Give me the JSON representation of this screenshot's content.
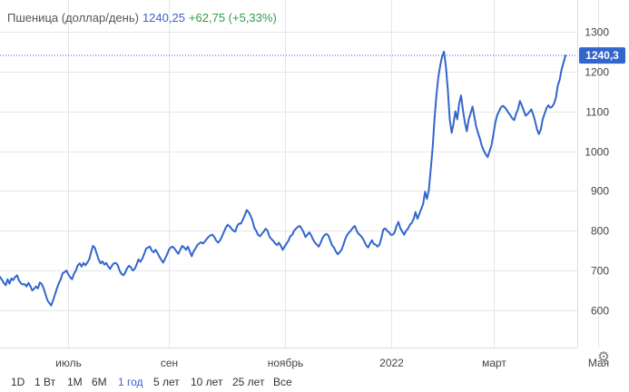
{
  "header": {
    "name": "Пшеница (доллар/день)",
    "price": "1240,25",
    "change": "+62,75 (+5,33%)"
  },
  "last_label": "1240,3",
  "colors": {
    "line": "#3366cc",
    "grid": "#e6e6e6",
    "positive": "#2e9e4a",
    "price_tag_bg": "#3366cc"
  },
  "ranges": [
    {
      "label": "1D",
      "active": false
    },
    {
      "label": "1 Вт",
      "active": false
    },
    {
      "label": "1M",
      "active": false
    },
    {
      "label": "6M",
      "active": false
    },
    {
      "label": "1 год",
      "active": true
    },
    {
      "label": "5 лет",
      "active": false
    },
    {
      "label": "10 лет",
      "active": false
    },
    {
      "label": "25 лет",
      "active": false
    },
    {
      "label": "Все",
      "active": false
    }
  ],
  "settings_icon": "gear-icon",
  "chart_data": {
    "type": "line",
    "ylim": [
      520,
      1310
    ],
    "y_ticks": [
      600,
      700,
      800,
      900,
      1000,
      1100,
      1200,
      1300
    ],
    "y_tick_labels": [
      "600",
      "700",
      "800",
      "900",
      "1000",
      "1100",
      "1200",
      "1300"
    ],
    "x_tick_labels": [
      "июль",
      "сен",
      "ноябрь",
      "2022",
      "март",
      "Мая"
    ],
    "x_tick_index": [
      36,
      89,
      150,
      206,
      260,
      315
    ],
    "grid": true,
    "reference_line": 1240.3,
    "series": [
      {
        "values": [
          684,
          677,
          669,
          663,
          678,
          667,
          680,
          676,
          684,
          688,
          675,
          668,
          665,
          666,
          660,
          669,
          661,
          650,
          654,
          660,
          655,
          670,
          666,
          655,
          640,
          625,
          618,
          612,
          625,
          640,
          655,
          668,
          678,
          693,
          696,
          700,
          690,
          683,
          678,
          692,
          700,
          713,
          718,
          710,
          719,
          713,
          720,
          728,
          745,
          762,
          757,
          742,
          728,
          718,
          723,
          715,
          719,
          710,
          704,
          712,
          718,
          719,
          714,
          700,
          692,
          688,
          695,
          706,
          712,
          708,
          700,
          704,
          715,
          728,
          722,
          730,
          742,
          755,
          758,
          760,
          750,
          746,
          752,
          744,
          735,
          727,
          720,
          730,
          740,
          752,
          758,
          760,
          755,
          748,
          742,
          752,
          762,
          758,
          752,
          760,
          748,
          736,
          748,
          755,
          764,
          768,
          771,
          768,
          773,
          780,
          785,
          789,
          790,
          784,
          775,
          770,
          776,
          786,
          797,
          808,
          815,
          811,
          805,
          800,
          798,
          812,
          818,
          818,
          828,
          839,
          852,
          847,
          838,
          826,
          808,
          800,
          790,
          786,
          792,
          798,
          805,
          800,
          785,
          779,
          775,
          768,
          764,
          770,
          762,
          752,
          760,
          768,
          775,
          786,
          790,
          800,
          805,
          810,
          812,
          805,
          796,
          784,
          790,
          796,
          788,
          778,
          770,
          765,
          760,
          770,
          782,
          789,
          792,
          788,
          776,
          763,
          758,
          748,
          741,
          746,
          752,
          765,
          780,
          790,
          796,
          801,
          808,
          812,
          800,
          792,
          788,
          782,
          773,
          763,
          758,
          768,
          776,
          767,
          765,
          760,
          765,
          782,
          803,
          806,
          800,
          796,
          790,
          790,
          796,
          812,
          822,
          806,
          798,
          790,
          800,
          805,
          815,
          820,
          830,
          847,
          830,
          842,
          855,
          867,
          898,
          880,
          903,
          955,
          1010,
          1080,
          1140,
          1185,
          1215,
          1238,
          1250,
          1212,
          1154,
          1080,
          1046,
          1070,
          1100,
          1080,
          1120,
          1140,
          1102,
          1072,
          1050,
          1080,
          1095,
          1112,
          1086,
          1061,
          1045,
          1030,
          1012,
          1001,
          992,
          985,
          1000,
          1015,
          1042,
          1070,
          1090,
          1100,
          1110,
          1114,
          1110,
          1104,
          1096,
          1090,
          1082,
          1078,
          1094,
          1105,
          1126,
          1115,
          1102,
          1089,
          1093,
          1099,
          1105,
          1092,
          1075,
          1055,
          1043,
          1054,
          1080,
          1094,
          1108,
          1115,
          1109,
          1112,
          1120,
          1135,
          1165,
          1180,
          1206,
          1223,
          1240.25
        ]
      }
    ]
  }
}
